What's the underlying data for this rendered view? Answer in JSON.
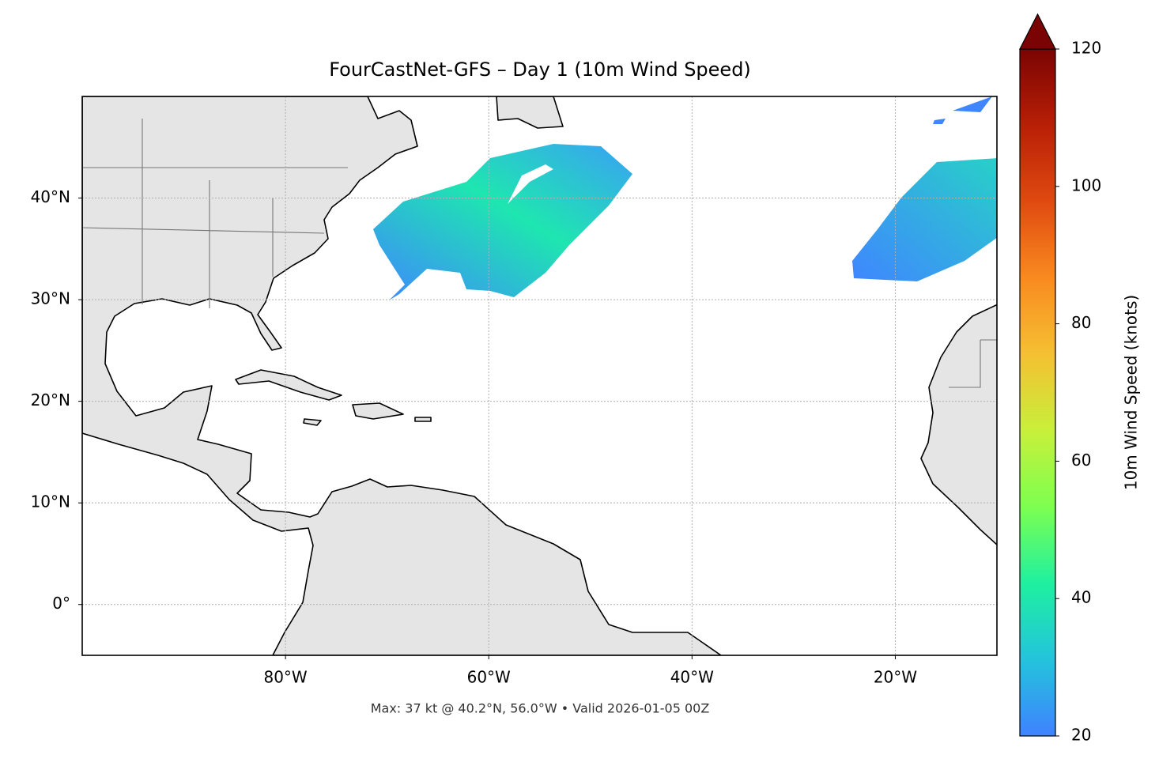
{
  "chart_data": {
    "type": "map",
    "title": "FourCastNet-GFS – Day 1 (10m Wind Speed)",
    "footnote": "Max: 37 kt @ 40.2°N, 56.0°W • Valid 2026-01-05 00Z",
    "xlim": [
      -100,
      -10
    ],
    "ylim": [
      -5,
      50
    ],
    "xticks": [
      {
        "value": -80,
        "label": "80°W"
      },
      {
        "value": -60,
        "label": "60°W"
      },
      {
        "value": -40,
        "label": "40°W"
      },
      {
        "value": -20,
        "label": "20°W"
      }
    ],
    "yticks": [
      {
        "value": 0,
        "label": "0°"
      },
      {
        "value": 10,
        "label": "10°N"
      },
      {
        "value": 20,
        "label": "20°N"
      },
      {
        "value": 30,
        "label": "30°N"
      },
      {
        "value": 40,
        "label": "40°N"
      }
    ],
    "grid": true,
    "colorbar": {
      "label": "10m Wind Speed (knots)",
      "lim": [
        20,
        120
      ],
      "ticks": [
        20,
        40,
        60,
        80,
        100,
        120
      ],
      "extend": "max",
      "colormap": [
        "#3f82ff",
        "#23c4dc",
        "#1ef0a0",
        "#7dff50",
        "#c8f03a",
        "#f5c032",
        "#f98a20",
        "#e04a10",
        "#b81f06",
        "#7a0403"
      ]
    }
  }
}
